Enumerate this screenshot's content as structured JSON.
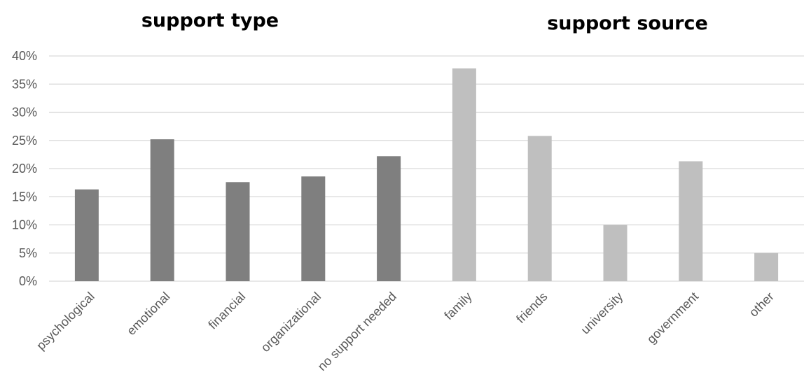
{
  "chart_data": {
    "type": "bar",
    "group_titles": [
      "support type",
      "support source"
    ],
    "categories": [
      "psychological",
      "emotional",
      "financial",
      "organizational",
      "no support needed",
      "family",
      "friends",
      "university",
      "government",
      "other"
    ],
    "values": [
      16.3,
      25.2,
      17.6,
      18.6,
      22.2,
      37.8,
      25.8,
      10.0,
      21.3,
      5.0
    ],
    "category_group": [
      0,
      0,
      0,
      0,
      0,
      1,
      1,
      1,
      1,
      1
    ],
    "y_ticks": [
      "0%",
      "5%",
      "10%",
      "15%",
      "20%",
      "25%",
      "30%",
      "35%",
      "40%"
    ],
    "ylim": [
      0,
      40
    ],
    "y_unit": "%",
    "grid": true,
    "legend": "none",
    "colors": {
      "support_type": "#7f7f7f",
      "support_source": "#bfbfbf",
      "gridline": "#d9d9d9",
      "axis_text": "#595959"
    }
  }
}
